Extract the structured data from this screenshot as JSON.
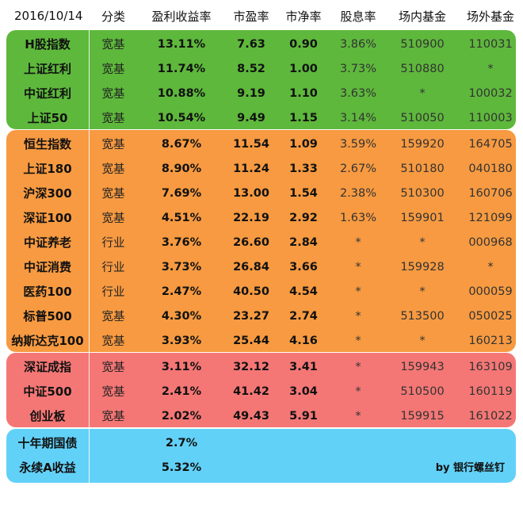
{
  "header": {
    "date": "2016/10/14",
    "columns": [
      "分类",
      "盈利收益率",
      "市盈率",
      "市净率",
      "股息率",
      "场内基金",
      "场外基金"
    ]
  },
  "groups": [
    {
      "color": "#5eb83c",
      "rows": [
        {
          "name": "H股指数",
          "cat": "宽基",
          "ey": "13.11%",
          "pe": "7.63",
          "pb": "0.90",
          "div": "3.86%",
          "onx": "510900",
          "offx": "110031"
        },
        {
          "name": "上证红利",
          "cat": "宽基",
          "ey": "11.74%",
          "pe": "8.52",
          "pb": "1.00",
          "div": "3.73%",
          "onx": "510880",
          "offx": "*"
        },
        {
          "name": "中证红利",
          "cat": "宽基",
          "ey": "10.88%",
          "pe": "9.19",
          "pb": "1.10",
          "div": "3.63%",
          "onx": "*",
          "offx": "100032"
        },
        {
          "name": "上证50",
          "cat": "宽基",
          "ey": "10.54%",
          "pe": "9.49",
          "pb": "1.15",
          "div": "3.14%",
          "onx": "510050",
          "offx": "110003"
        }
      ]
    },
    {
      "color": "#f79a41",
      "rows": [
        {
          "name": "恒生指数",
          "cat": "宽基",
          "ey": "8.67%",
          "pe": "11.54",
          "pb": "1.09",
          "div": "3.59%",
          "onx": "159920",
          "offx": "164705"
        },
        {
          "name": "上证180",
          "cat": "宽基",
          "ey": "8.90%",
          "pe": "11.24",
          "pb": "1.33",
          "div": "2.67%",
          "onx": "510180",
          "offx": "040180"
        },
        {
          "name": "沪深300",
          "cat": "宽基",
          "ey": "7.69%",
          "pe": "13.00",
          "pb": "1.54",
          "div": "2.38%",
          "onx": "510300",
          "offx": "160706"
        },
        {
          "name": "深证100",
          "cat": "宽基",
          "ey": "4.51%",
          "pe": "22.19",
          "pb": "2.92",
          "div": "1.63%",
          "onx": "159901",
          "offx": "121099"
        },
        {
          "name": "中证养老",
          "cat": "行业",
          "ey": "3.76%",
          "pe": "26.60",
          "pb": "2.84",
          "div": "*",
          "onx": "*",
          "offx": "000968"
        },
        {
          "name": "中证消费",
          "cat": "行业",
          "ey": "3.73%",
          "pe": "26.84",
          "pb": "3.66",
          "div": "*",
          "onx": "159928",
          "offx": "*"
        },
        {
          "name": "医药100",
          "cat": "行业",
          "ey": "2.47%",
          "pe": "40.50",
          "pb": "4.54",
          "div": "*",
          "onx": "*",
          "offx": "000059"
        },
        {
          "name": "标普500",
          "cat": "宽基",
          "ey": "4.30%",
          "pe": "23.27",
          "pb": "2.74",
          "div": "*",
          "onx": "513500",
          "offx": "050025"
        },
        {
          "name": "纳斯达克100",
          "cat": "宽基",
          "ey": "3.93%",
          "pe": "25.44",
          "pb": "4.16",
          "div": "*",
          "onx": "*",
          "offx": "160213"
        }
      ]
    },
    {
      "color": "#f47775",
      "rows": [
        {
          "name": "深证成指",
          "cat": "宽基",
          "ey": "3.11%",
          "pe": "32.12",
          "pb": "3.41",
          "div": "*",
          "onx": "159943",
          "offx": "163109"
        },
        {
          "name": "中证500",
          "cat": "宽基",
          "ey": "2.41%",
          "pe": "41.42",
          "pb": "3.04",
          "div": "*",
          "onx": "510500",
          "offx": "160119"
        },
        {
          "name": "创业板",
          "cat": "宽基",
          "ey": "2.02%",
          "pe": "49.43",
          "pb": "5.91",
          "div": "*",
          "onx": "159915",
          "offx": "161022"
        }
      ]
    },
    {
      "color": "#62d1f8",
      "rows": [
        {
          "name": "十年期国债",
          "cat": "",
          "ey": "2.7%",
          "pe": "",
          "pb": "",
          "div": "",
          "onx": "",
          "offx": ""
        },
        {
          "name": "永续A收益",
          "cat": "",
          "ey": "5.32%",
          "pe": "",
          "pb": "",
          "div": "",
          "onx": "",
          "offx": ""
        }
      ]
    }
  ],
  "credit": "by 银行螺丝钉"
}
